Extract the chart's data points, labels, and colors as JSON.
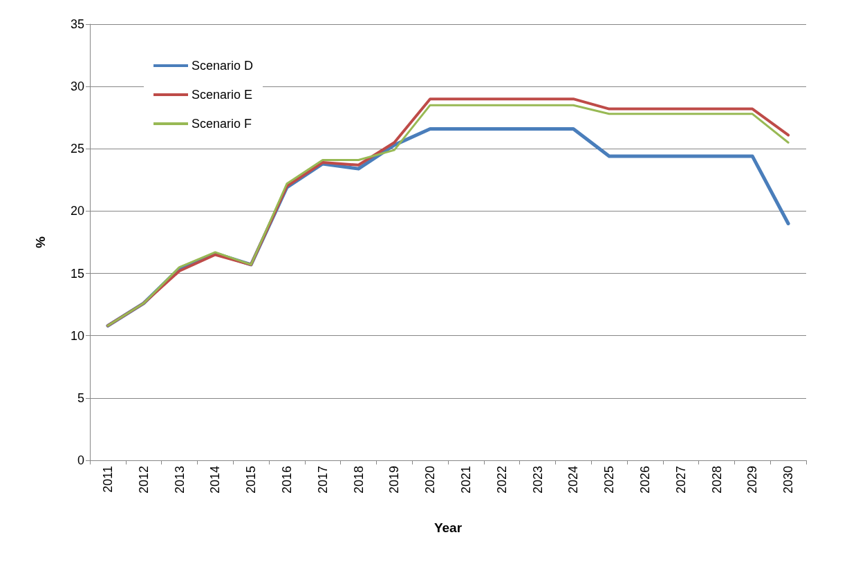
{
  "chart_data": {
    "type": "line",
    "xlabel": "Year",
    "ylabel": "%",
    "categories": [
      "2011",
      "2012",
      "2013",
      "2014",
      "2015",
      "2016",
      "2017",
      "2018",
      "2019",
      "2020",
      "2021",
      "2022",
      "2023",
      "2024",
      "2025",
      "2026",
      "2027",
      "2028",
      "2029",
      "2030"
    ],
    "series": [
      {
        "name": "Scenario D",
        "color": "#4a7ebb",
        "values": [
          10.8,
          12.6,
          15.4,
          16.6,
          15.7,
          21.9,
          23.8,
          23.4,
          25.3,
          26.6,
          26.6,
          26.6,
          26.6,
          26.6,
          24.4,
          24.4,
          24.4,
          24.4,
          24.4,
          19.0
        ]
      },
      {
        "name": "Scenario E",
        "color": "#be4b48",
        "values": [
          10.8,
          12.6,
          15.2,
          16.5,
          15.7,
          22.0,
          23.9,
          23.7,
          25.5,
          29.0,
          29.0,
          29.0,
          29.0,
          29.0,
          28.2,
          28.2,
          28.2,
          28.2,
          28.2,
          26.1
        ]
      },
      {
        "name": "Scenario F",
        "color": "#98b954",
        "values": [
          10.8,
          12.6,
          15.5,
          16.7,
          15.7,
          22.2,
          24.1,
          24.1,
          24.9,
          28.5,
          28.5,
          28.5,
          28.5,
          28.5,
          27.8,
          27.8,
          27.8,
          27.8,
          27.8,
          25.5
        ]
      }
    ],
    "ylim": [
      0,
      35
    ],
    "yticks": [
      0,
      5,
      10,
      15,
      20,
      25,
      30,
      35
    ],
    "grid": "y",
    "legend": "top left",
    "marker": "none",
    "line_style": "solid"
  }
}
